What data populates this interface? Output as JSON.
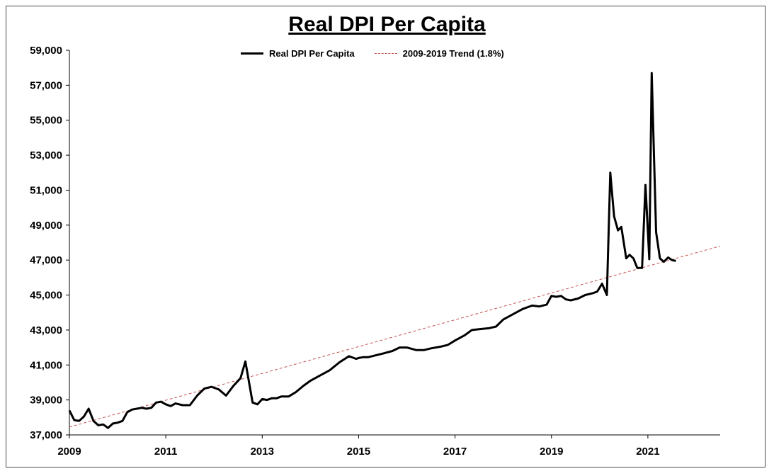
{
  "chart_data": {
    "type": "line",
    "title": "Real DPI Per Capita",
    "xlabel": "",
    "ylabel": "",
    "xlim": [
      2009.0,
      2022.5
    ],
    "ylim": [
      37000,
      59000
    ],
    "y_ticks": [
      37000,
      39000,
      41000,
      43000,
      45000,
      47000,
      49000,
      51000,
      53000,
      55000,
      57000,
      59000
    ],
    "y_tick_labels": [
      "37,000",
      "39,000",
      "41,000",
      "43,000",
      "45,000",
      "47,000",
      "49,000",
      "51,000",
      "53,000",
      "55,000",
      "57,000",
      "59,000"
    ],
    "x_ticks": [
      2009,
      2011,
      2013,
      2015,
      2017,
      2019,
      2021
    ],
    "x_tick_labels": [
      "2009",
      "2011",
      "2013",
      "2015",
      "2017",
      "2019",
      "2021"
    ],
    "legend_position": "top-center",
    "series": [
      {
        "name": "Real DPI Per Capita",
        "style": "solid",
        "color": "#000000",
        "x": [
          2009.0,
          2009.1,
          2009.2,
          2009.3,
          2009.4,
          2009.5,
          2009.6,
          2009.7,
          2009.8,
          2009.9,
          2010.0,
          2010.1,
          2010.2,
          2010.3,
          2010.4,
          2010.5,
          2010.6,
          2010.7,
          2010.8,
          2010.9,
          2011.0,
          2011.1,
          2011.2,
          2011.35,
          2011.5,
          2011.65,
          2011.8,
          2011.95,
          2012.1,
          2012.25,
          2012.4,
          2012.55,
          2012.65,
          2012.8,
          2012.9,
          2012.95,
          2013.0,
          2013.1,
          2013.2,
          2013.3,
          2013.4,
          2013.55,
          2013.7,
          2013.85,
          2014.0,
          2014.2,
          2014.4,
          2014.6,
          2014.8,
          2014.95,
          2015.0,
          2015.1,
          2015.2,
          2015.35,
          2015.5,
          2015.7,
          2015.85,
          2016.0,
          2016.2,
          2016.35,
          2016.5,
          2016.7,
          2016.85,
          2017.0,
          2017.2,
          2017.35,
          2017.5,
          2017.7,
          2017.85,
          2018.0,
          2018.2,
          2018.4,
          2018.6,
          2018.75,
          2018.9,
          2019.0,
          2019.1,
          2019.2,
          2019.3,
          2019.4,
          2019.55,
          2019.7,
          2019.85,
          2019.95,
          2020.05,
          2020.15,
          2020.22,
          2020.3,
          2020.38,
          2020.45,
          2020.55,
          2020.62,
          2020.7,
          2020.78,
          2020.88,
          2020.95,
          2021.03,
          2021.08,
          2021.17,
          2021.25,
          2021.33,
          2021.42,
          2021.5,
          2021.58
        ],
        "values": [
          38400,
          37850,
          37800,
          38050,
          38500,
          37800,
          37550,
          37600,
          37400,
          37650,
          37700,
          37800,
          38300,
          38450,
          38500,
          38550,
          38500,
          38550,
          38850,
          38900,
          38750,
          38650,
          38800,
          38700,
          38700,
          39250,
          39650,
          39750,
          39600,
          39250,
          39800,
          40250,
          41200,
          38850,
          38750,
          38900,
          39050,
          39000,
          39100,
          39100,
          39200,
          39200,
          39450,
          39800,
          40100,
          40400,
          40700,
          41150,
          41500,
          41350,
          41400,
          41450,
          41450,
          41550,
          41650,
          41800,
          42000,
          42000,
          41850,
          41850,
          41950,
          42050,
          42150,
          42400,
          42700,
          43000,
          43050,
          43100,
          43200,
          43600,
          43900,
          44200,
          44400,
          44350,
          44450,
          44950,
          44900,
          44950,
          44750,
          44700,
          44800,
          45000,
          45100,
          45200,
          45650,
          45000,
          52000,
          49500,
          48700,
          48900,
          47100,
          47300,
          47100,
          46550,
          46550,
          51300,
          47050,
          57700,
          48600,
          47100,
          46900,
          47150,
          47000,
          46950
        ]
      },
      {
        "name": "2009-2019 Trend (1.8%)",
        "style": "dashed",
        "color": "#c0504d",
        "x": [
          2009.0,
          2022.5
        ],
        "values": [
          37450,
          47800
        ]
      }
    ]
  }
}
